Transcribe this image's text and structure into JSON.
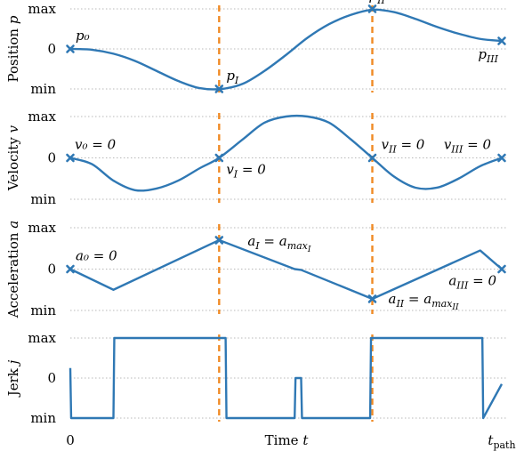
{
  "chart_data": [
    {
      "type": "line",
      "ylabel": "Position p",
      "x": [
        0.0,
        0.05,
        0.1,
        0.15,
        0.2,
        0.25,
        0.3,
        0.35,
        0.4,
        0.45,
        0.5,
        0.55,
        0.6,
        0.65,
        0.7,
        0.75,
        0.8,
        0.85,
        0.9,
        0.95,
        1.0
      ],
      "yticks": [
        "max",
        "0",
        "min"
      ],
      "ylim": [
        -1,
        1
      ],
      "xlim": [
        0,
        1
      ],
      "series": [
        {
          "values": [
            0.0,
            -0.02,
            -0.12,
            -0.3,
            -0.55,
            -0.8,
            -0.98,
            -1.0,
            -0.87,
            -0.55,
            -0.15,
            0.28,
            0.62,
            0.85,
            0.98,
            0.92,
            0.75,
            0.55,
            0.38,
            0.25,
            0.2
          ]
        }
      ],
      "markers": [
        [
          0.0,
          0.0
        ],
        [
          0.345,
          -1.0
        ],
        [
          0.7,
          1.0
        ],
        [
          1.0,
          0.2
        ]
      ],
      "annotations": [
        {
          "text": "p₀",
          "x": 0.0,
          "y": 0.0
        },
        {
          "text": "p_I",
          "x": 0.345,
          "y": -1.0
        },
        {
          "text": "p_II",
          "x": 0.7,
          "y": 1.0
        },
        {
          "text": "p_III",
          "x": 1.0,
          "y": 0.2
        }
      ]
    },
    {
      "type": "line",
      "ylabel": "Velocity v",
      "x": [
        0.0,
        0.05,
        0.1,
        0.15,
        0.2,
        0.25,
        0.3,
        0.345,
        0.4,
        0.45,
        0.5,
        0.55,
        0.6,
        0.65,
        0.7,
        0.75,
        0.8,
        0.85,
        0.9,
        0.95,
        1.0
      ],
      "yticks": [
        "max",
        "0",
        "min"
      ],
      "ylim": [
        -1,
        1
      ],
      "xlim": [
        0,
        1
      ],
      "series": [
        {
          "values": [
            0.0,
            -0.15,
            -0.55,
            -0.78,
            -0.74,
            -0.55,
            -0.25,
            0.0,
            0.45,
            0.85,
            1.0,
            1.0,
            0.85,
            0.45,
            0.0,
            -0.45,
            -0.72,
            -0.72,
            -0.5,
            -0.2,
            0.0
          ]
        }
      ],
      "markers": [
        [
          0.0,
          0.0
        ],
        [
          0.345,
          0.0
        ],
        [
          0.7,
          0.0
        ],
        [
          1.0,
          0.0
        ]
      ],
      "annotations": [
        {
          "text": "v₀ = 0",
          "x": 0.0,
          "y": 0.0
        },
        {
          "text": "v_I = 0",
          "x": 0.345,
          "y": 0.0
        },
        {
          "text": "v_II = 0",
          "x": 0.7,
          "y": 0.0
        },
        {
          "text": "v_III = 0",
          "x": 1.0,
          "y": 0.0
        }
      ]
    },
    {
      "type": "line",
      "ylabel": "Acceleration a",
      "x": [
        0.0,
        0.1,
        0.345,
        0.52,
        0.535,
        0.7,
        0.95,
        1.0
      ],
      "yticks": [
        "max",
        "0",
        "min"
      ],
      "ylim": [
        -1,
        1
      ],
      "xlim": [
        0,
        1
      ],
      "series": [
        {
          "values": [
            0.0,
            -0.5,
            0.7,
            0.0,
            -0.02,
            -0.72,
            0.45,
            0.0
          ]
        }
      ],
      "markers": [
        [
          0.0,
          0.0
        ],
        [
          0.345,
          0.7
        ],
        [
          0.7,
          -0.72
        ],
        [
          1.0,
          0.0
        ]
      ],
      "annotations": [
        {
          "text": "a₀ = 0",
          "x": 0.0,
          "y": 0.0
        },
        {
          "text": "a_I = a_max_I",
          "x": 0.345,
          "y": 0.7
        },
        {
          "text": "a_II = a_max_II",
          "x": 0.7,
          "y": -0.72
        },
        {
          "text": "a_III = 0",
          "x": 1.0,
          "y": 0.0
        }
      ]
    },
    {
      "type": "line",
      "ylabel": "Jerk j",
      "x": [
        0.0,
        0.002,
        0.004,
        0.1,
        0.102,
        0.36,
        0.362,
        0.52,
        0.522,
        0.535,
        0.537,
        0.695,
        0.697,
        0.955,
        0.957,
        1.0
      ],
      "yticks": [
        "max",
        "0",
        "min"
      ],
      "ylim": [
        -1,
        1
      ],
      "xlim": [
        0,
        1
      ],
      "xticks": [
        "0",
        "t_path"
      ],
      "xlabel": "Time t",
      "series": [
        {
          "values": [
            0.25,
            -1.0,
            -1.0,
            -1.0,
            1.0,
            1.0,
            -1.0,
            -1.0,
            0.0,
            0.0,
            -1.0,
            -1.0,
            1.0,
            1.0,
            -1.0,
            -0.15
          ]
        }
      ]
    }
  ],
  "events": {
    "t_I": 0.345,
    "t_II": 0.7
  },
  "colors": {
    "curve": "#2f78b4",
    "event_line": "#f08a24",
    "grid": "#b8b8b8"
  }
}
